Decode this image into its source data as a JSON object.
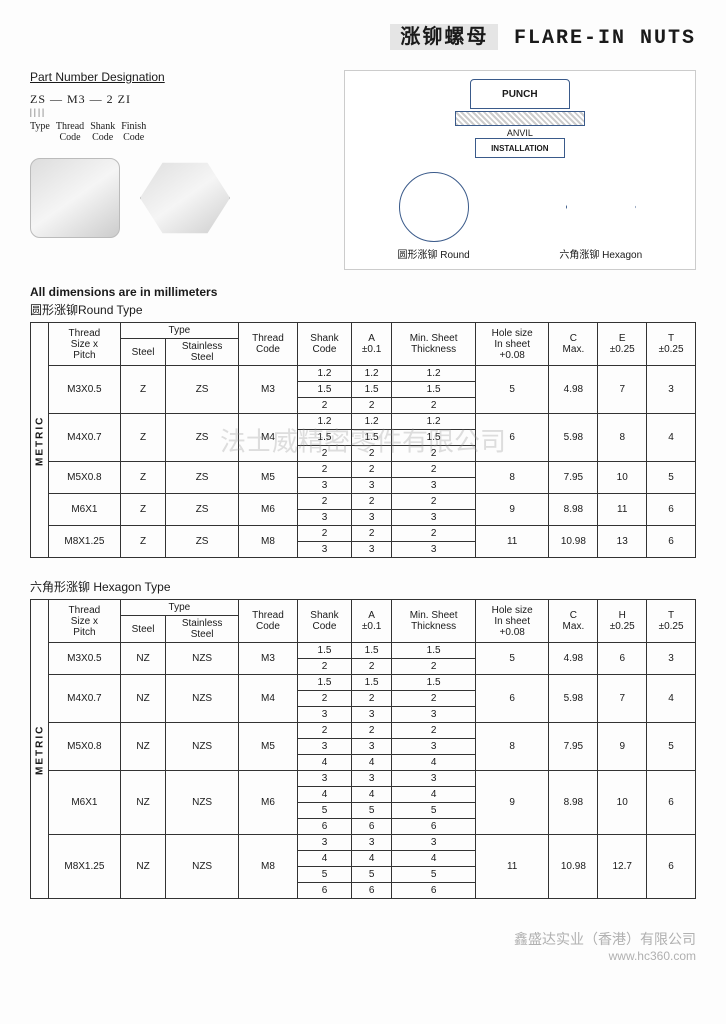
{
  "title": {
    "cn": "涨铆螺母",
    "en": "FLARE-IN NUTS"
  },
  "pnDesignation": {
    "heading": "Part Number Designation",
    "sample": "ZS — M3 — 2     ZI",
    "labels": [
      "Type",
      "Thread\nCode",
      "Shank\nCode",
      "Finish\nCode"
    ]
  },
  "drawing": {
    "punch": "PUNCH",
    "anvil": "ANVIL",
    "installation": "INSTALLATION",
    "roundLabel": "圆形涨铆 Round",
    "hexLabel": "六角涨铆 Hexagon"
  },
  "note": "All dimensions are in millimeters",
  "roundSection": {
    "label": "圆形涨铆Round Type"
  },
  "hexSection": {
    "label": "六角形涨铆 Hexagon Type"
  },
  "headers": {
    "metric": "METRIC",
    "threadPitch": "Thread\nSize x\nPitch",
    "type": "Type",
    "steel": "Steel",
    "stainless": "Stainless\nSteel",
    "threadCode": "Thread\nCode",
    "shankCode": "Shank\nCode",
    "a": "A\n±0.1",
    "minSheet": "Min. Sheet\nThickness",
    "holeSize": "Hole size\nIn sheet\n+0.08",
    "cMax": "C\nMax.",
    "e": "E\n±0.25",
    "h": "H\n±0.25",
    "t": "T\n±0.25"
  },
  "roundTable": [
    {
      "pitch": "M3X0.5",
      "steel": "Z",
      "ss": "ZS",
      "tc": "M3",
      "rows": [
        [
          "1.2",
          "1.2",
          "1.2"
        ],
        [
          "1.5",
          "1.5",
          "1.5"
        ],
        [
          "2",
          "2",
          "2"
        ]
      ],
      "hole": "5",
      "c": "4.98",
      "e": "7",
      "t": "3"
    },
    {
      "pitch": "M4X0.7",
      "steel": "Z",
      "ss": "ZS",
      "tc": "M4",
      "rows": [
        [
          "1.2",
          "1.2",
          "1.2"
        ],
        [
          "1.5",
          "1.5",
          "1.5"
        ],
        [
          "2",
          "2",
          "2"
        ]
      ],
      "hole": "6",
      "c": "5.98",
      "e": "8",
      "t": "4"
    },
    {
      "pitch": "M5X0.8",
      "steel": "Z",
      "ss": "ZS",
      "tc": "M5",
      "rows": [
        [
          "2",
          "2",
          "2"
        ],
        [
          "3",
          "3",
          "3"
        ]
      ],
      "hole": "8",
      "c": "7.95",
      "e": "10",
      "t": "5"
    },
    {
      "pitch": "M6X1",
      "steel": "Z",
      "ss": "ZS",
      "tc": "M6",
      "rows": [
        [
          "2",
          "2",
          "2"
        ],
        [
          "3",
          "3",
          "3"
        ]
      ],
      "hole": "9",
      "c": "8.98",
      "e": "11",
      "t": "6"
    },
    {
      "pitch": "M8X1.25",
      "steel": "Z",
      "ss": "ZS",
      "tc": "M8",
      "rows": [
        [
          "2",
          "2",
          "2"
        ],
        [
          "3",
          "3",
          "3"
        ]
      ],
      "hole": "11",
      "c": "10.98",
      "e": "13",
      "t": "6"
    }
  ],
  "hexTable": [
    {
      "pitch": "M3X0.5",
      "steel": "NZ",
      "ss": "NZS",
      "tc": "M3",
      "rows": [
        [
          "1.5",
          "1.5",
          "1.5"
        ],
        [
          "2",
          "2",
          "2"
        ]
      ],
      "hole": "5",
      "c": "4.98",
      "h": "6",
      "t": "3"
    },
    {
      "pitch": "M4X0.7",
      "steel": "NZ",
      "ss": "NZS",
      "tc": "M4",
      "rows": [
        [
          "1.5",
          "1.5",
          "1.5"
        ],
        [
          "2",
          "2",
          "2"
        ],
        [
          "3",
          "3",
          "3"
        ]
      ],
      "hole": "6",
      "c": "5.98",
      "h": "7",
      "t": "4"
    },
    {
      "pitch": "M5X0.8",
      "steel": "NZ",
      "ss": "NZS",
      "tc": "M5",
      "rows": [
        [
          "2",
          "2",
          "2"
        ],
        [
          "3",
          "3",
          "3"
        ],
        [
          "4",
          "4",
          "4"
        ]
      ],
      "hole": "8",
      "c": "7.95",
      "h": "9",
      "t": "5"
    },
    {
      "pitch": "M6X1",
      "steel": "NZ",
      "ss": "NZS",
      "tc": "M6",
      "rows": [
        [
          "3",
          "3",
          "3"
        ],
        [
          "4",
          "4",
          "4"
        ],
        [
          "5",
          "5",
          "5"
        ],
        [
          "6",
          "6",
          "6"
        ]
      ],
      "hole": "9",
      "c": "8.98",
      "h": "10",
      "t": "6"
    },
    {
      "pitch": "M8X1.25",
      "steel": "NZ",
      "ss": "NZS",
      "tc": "M8",
      "rows": [
        [
          "3",
          "3",
          "3"
        ],
        [
          "4",
          "4",
          "4"
        ],
        [
          "5",
          "5",
          "5"
        ],
        [
          "6",
          "6",
          "6"
        ]
      ],
      "hole": "11",
      "c": "10.98",
      "h": "12.7",
      "t": "6"
    }
  ],
  "watermark": "法士威精密零件有限公司",
  "footer": {
    "company": "鑫盛达实业（香港）有限公司",
    "url": "www.hc360.com"
  }
}
